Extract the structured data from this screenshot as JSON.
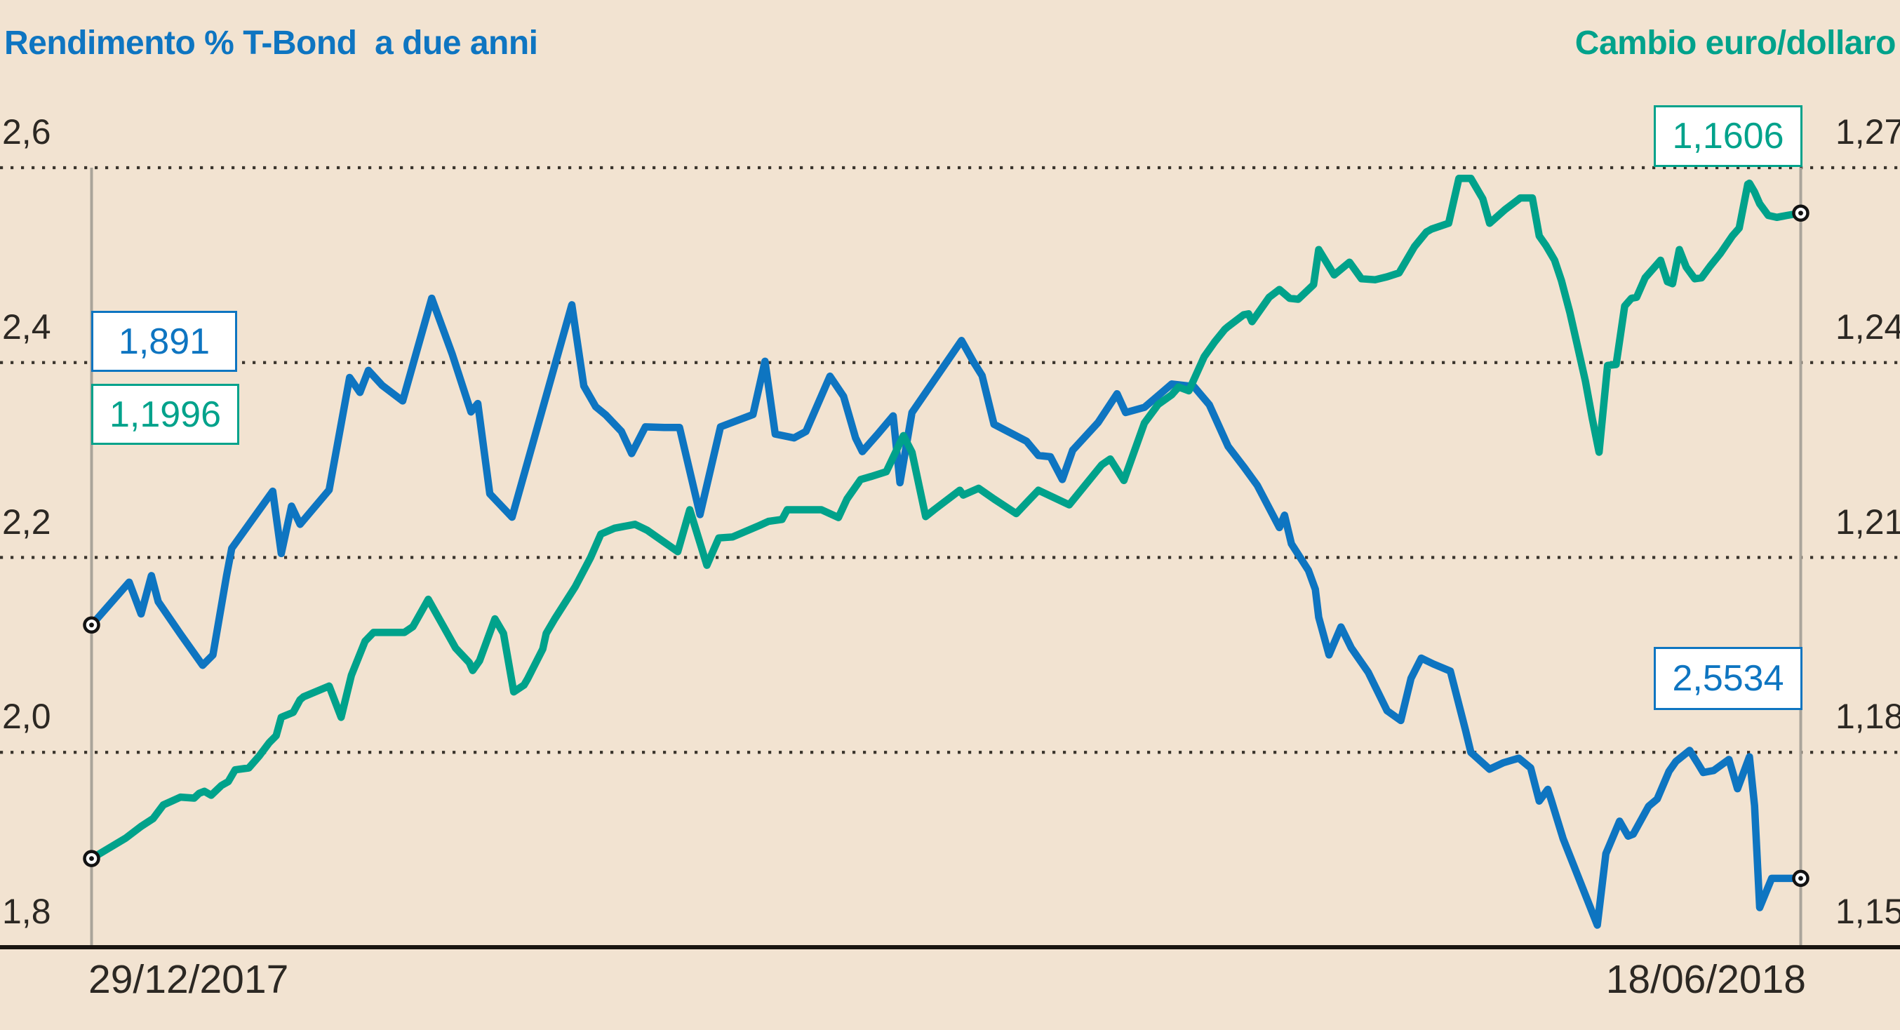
{
  "chart_data": {
    "type": "line",
    "background_color": "#f2e3d1",
    "title_left": {
      "text": "Rendimento % T-Bond  a due anni",
      "color": "#0e75c1"
    },
    "title_right": {
      "text": "Cambio euro/dollaro",
      "color": "#00a28b"
    },
    "x_axis": {
      "start_label": "29/12/2017",
      "end_label": "18/06/2018"
    },
    "y_axis_left": {
      "labels": [
        "2,6",
        "2,4",
        "2,2",
        "2,0",
        "1,8"
      ],
      "values": [
        2.6,
        2.4,
        2.2,
        2.0,
        1.8
      ],
      "min": 1.8,
      "max": 2.6
    },
    "y_axis_right": {
      "labels": [
        "1,27",
        "1,24",
        "1,21",
        "1,18",
        "1,15"
      ],
      "values": [
        1.27,
        1.24,
        1.21,
        1.18,
        1.15
      ],
      "min": 1.15,
      "max": 1.27
    },
    "grid": {
      "style": "dotted",
      "color": "#3a342c",
      "legend_position": "none"
    },
    "annotations": [
      {
        "text": "1,891",
        "color": "blue",
        "position": "start-left"
      },
      {
        "text": "1,1996",
        "color": "green",
        "position": "start-left-below"
      },
      {
        "text": "1,1606",
        "color": "green",
        "position": "end-top-right"
      },
      {
        "text": "2,5534",
        "color": "blue",
        "position": "end-mid-right"
      }
    ],
    "series": [
      {
        "id": "blue-line",
        "color": "#0e75c1",
        "axis": "right",
        "start_value": 1.1996,
        "end_value": 1.1606,
        "points": [
          [
            0.0,
            1.1996
          ],
          [
            0.022,
            1.2062
          ],
          [
            0.029,
            1.2013
          ],
          [
            0.035,
            1.2072
          ],
          [
            0.039,
            1.2032
          ],
          [
            0.052,
            1.1982
          ],
          [
            0.065,
            1.1934
          ],
          [
            0.071,
            1.195
          ],
          [
            0.079,
            1.2072
          ],
          [
            0.082,
            1.2114
          ],
          [
            0.106,
            1.2202
          ],
          [
            0.111,
            1.2106
          ],
          [
            0.117,
            1.2179
          ],
          [
            0.122,
            1.2151
          ],
          [
            0.139,
            1.2204
          ],
          [
            0.151,
            1.2377
          ],
          [
            0.157,
            1.2354
          ],
          [
            0.162,
            1.2388
          ],
          [
            0.17,
            1.2365
          ],
          [
            0.182,
            1.2341
          ],
          [
            0.199,
            1.2499
          ],
          [
            0.211,
            1.2413
          ],
          [
            0.222,
            1.2324
          ],
          [
            0.226,
            1.2337
          ],
          [
            0.233,
            1.2198
          ],
          [
            0.246,
            1.2162
          ],
          [
            0.281,
            1.2489
          ],
          [
            0.288,
            1.2364
          ],
          [
            0.295,
            1.2332
          ],
          [
            0.301,
            1.2319
          ],
          [
            0.31,
            1.2294
          ],
          [
            0.316,
            1.226
          ],
          [
            0.324,
            1.2301
          ],
          [
            0.335,
            1.23
          ],
          [
            0.344,
            1.23
          ],
          [
            0.356,
            1.2166
          ],
          [
            0.368,
            1.2301
          ],
          [
            0.387,
            1.232
          ],
          [
            0.394,
            1.2402
          ],
          [
            0.4,
            1.229
          ],
          [
            0.411,
            1.2284
          ],
          [
            0.418,
            1.2294
          ],
          [
            0.432,
            1.2379
          ],
          [
            0.44,
            1.2348
          ],
          [
            0.447,
            1.2284
          ],
          [
            0.451,
            1.2263
          ],
          [
            0.46,
            1.229
          ],
          [
            0.469,
            1.2318
          ],
          [
            0.473,
            1.2215
          ],
          [
            0.48,
            1.2323
          ],
          [
            0.509,
            1.2434
          ],
          [
            0.516,
            1.2401
          ],
          [
            0.521,
            1.238
          ],
          [
            0.528,
            1.2305
          ],
          [
            0.547,
            1.2279
          ],
          [
            0.554,
            1.2257
          ],
          [
            0.561,
            1.2255
          ],
          [
            0.568,
            1.222
          ],
          [
            0.574,
            1.2265
          ],
          [
            0.589,
            1.2308
          ],
          [
            0.6,
            1.2352
          ],
          [
            0.605,
            1.2323
          ],
          [
            0.616,
            1.2331
          ],
          [
            0.632,
            1.2367
          ],
          [
            0.645,
            1.2363
          ],
          [
            0.654,
            1.2335
          ],
          [
            0.665,
            1.2271
          ],
          [
            0.674,
            1.224
          ],
          [
            0.682,
            1.2211
          ],
          [
            0.689,
            1.2176
          ],
          [
            0.695,
            1.2146
          ],
          [
            0.698,
            1.2165
          ],
          [
            0.702,
            1.2121
          ],
          [
            0.712,
            1.208
          ],
          [
            0.716,
            1.2051
          ],
          [
            0.718,
            1.2008
          ],
          [
            0.724,
            1.195
          ],
          [
            0.731,
            1.1993
          ],
          [
            0.737,
            1.1961
          ],
          [
            0.747,
            1.1923
          ],
          [
            0.758,
            1.1864
          ],
          [
            0.766,
            1.1849
          ],
          [
            0.772,
            1.1914
          ],
          [
            0.778,
            1.1945
          ],
          [
            0.785,
            1.1936
          ],
          [
            0.795,
            1.1925
          ],
          [
            0.804,
            1.1833
          ],
          [
            0.807,
            1.18
          ],
          [
            0.818,
            1.1774
          ],
          [
            0.826,
            1.1784
          ],
          [
            0.835,
            1.1791
          ],
          [
            0.842,
            1.1776
          ],
          [
            0.847,
            1.1725
          ],
          [
            0.852,
            1.1743
          ],
          [
            0.854,
            1.1727
          ],
          [
            0.861,
            1.1667
          ],
          [
            0.881,
            1.1534
          ],
          [
            0.886,
            1.1644
          ],
          [
            0.894,
            1.1694
          ],
          [
            0.899,
            1.1671
          ],
          [
            0.902,
            1.1674
          ],
          [
            0.911,
            1.1717
          ],
          [
            0.916,
            1.1728
          ],
          [
            0.923,
            1.1771
          ],
          [
            0.927,
            1.1786
          ],
          [
            0.935,
            1.1803
          ],
          [
            0.94,
            1.1782
          ],
          [
            0.943,
            1.1769
          ],
          [
            0.949,
            1.1772
          ],
          [
            0.958,
            1.1789
          ],
          [
            0.963,
            1.1744
          ],
          [
            0.97,
            1.1793
          ],
          [
            0.973,
            1.1718
          ],
          [
            0.976,
            1.1561
          ],
          [
            0.983,
            1.1606
          ],
          [
            1.0,
            1.1606
          ]
        ]
      },
      {
        "id": "green-line",
        "color": "#00a28b",
        "axis": "left",
        "start_value": 1.891,
        "end_value": 2.5534,
        "points": [
          [
            0.0,
            1.891
          ],
          [
            0.02,
            1.912
          ],
          [
            0.029,
            1.924
          ],
          [
            0.036,
            1.932
          ],
          [
            0.042,
            1.946
          ],
          [
            0.047,
            1.95
          ],
          [
            0.052,
            1.954
          ],
          [
            0.06,
            1.953
          ],
          [
            0.063,
            1.958
          ],
          [
            0.066,
            1.96
          ],
          [
            0.07,
            1.956
          ],
          [
            0.076,
            1.966
          ],
          [
            0.08,
            1.97
          ],
          [
            0.084,
            1.982
          ],
          [
            0.092,
            1.984
          ],
          [
            0.098,
            1.996
          ],
          [
            0.104,
            2.01
          ],
          [
            0.108,
            2.017
          ],
          [
            0.111,
            2.036
          ],
          [
            0.118,
            2.041
          ],
          [
            0.122,
            2.054
          ],
          [
            0.124,
            2.057
          ],
          [
            0.139,
            2.068
          ],
          [
            0.146,
            2.036
          ],
          [
            0.152,
            2.079
          ],
          [
            0.16,
            2.114
          ],
          [
            0.165,
            2.123
          ],
          [
            0.183,
            2.123
          ],
          [
            0.188,
            2.129
          ],
          [
            0.197,
            2.157
          ],
          [
            0.213,
            2.107
          ],
          [
            0.221,
            2.092
          ],
          [
            0.223,
            2.084
          ],
          [
            0.227,
            2.094
          ],
          [
            0.236,
            2.137
          ],
          [
            0.241,
            2.122
          ],
          [
            0.247,
            2.062
          ],
          [
            0.253,
            2.069
          ],
          [
            0.255,
            2.075
          ],
          [
            0.264,
            2.106
          ],
          [
            0.266,
            2.122
          ],
          [
            0.271,
            2.137
          ],
          [
            0.283,
            2.17
          ],
          [
            0.292,
            2.2
          ],
          [
            0.298,
            2.224
          ],
          [
            0.306,
            2.23
          ],
          [
            0.318,
            2.234
          ],
          [
            0.325,
            2.228
          ],
          [
            0.343,
            2.206
          ],
          [
            0.35,
            2.249
          ],
          [
            0.36,
            2.192
          ],
          [
            0.367,
            2.22
          ],
          [
            0.375,
            2.221
          ],
          [
            0.391,
            2.233
          ],
          [
            0.396,
            2.237
          ],
          [
            0.404,
            2.239
          ],
          [
            0.407,
            2.249
          ],
          [
            0.427,
            2.249
          ],
          [
            0.437,
            2.241
          ],
          [
            0.442,
            2.26
          ],
          [
            0.45,
            2.28
          ],
          [
            0.456,
            2.283
          ],
          [
            0.465,
            2.288
          ],
          [
            0.475,
            2.325
          ],
          [
            0.48,
            2.308
          ],
          [
            0.488,
            2.242
          ],
          [
            0.493,
            2.249
          ],
          [
            0.508,
            2.269
          ],
          [
            0.51,
            2.264
          ],
          [
            0.519,
            2.271
          ],
          [
            0.528,
            2.26
          ],
          [
            0.541,
            2.245
          ],
          [
            0.548,
            2.258
          ],
          [
            0.554,
            2.269
          ],
          [
            0.572,
            2.254
          ],
          [
            0.591,
            2.295
          ],
          [
            0.596,
            2.301
          ],
          [
            0.604,
            2.279
          ],
          [
            0.616,
            2.338
          ],
          [
            0.624,
            2.357
          ],
          [
            0.632,
            2.367
          ],
          [
            0.636,
            2.375
          ],
          [
            0.642,
            2.371
          ],
          [
            0.651,
            2.406
          ],
          [
            0.657,
            2.421
          ],
          [
            0.663,
            2.434
          ],
          [
            0.665,
            2.437
          ],
          [
            0.674,
            2.449
          ],
          [
            0.677,
            2.45
          ],
          [
            0.679,
            2.442
          ],
          [
            0.689,
            2.467
          ],
          [
            0.695,
            2.475
          ],
          [
            0.701,
            2.466
          ],
          [
            0.706,
            2.465
          ],
          [
            0.715,
            2.48
          ],
          [
            0.718,
            2.516
          ],
          [
            0.727,
            2.49
          ],
          [
            0.736,
            2.503
          ],
          [
            0.743,
            2.486
          ],
          [
            0.751,
            2.485
          ],
          [
            0.758,
            2.488
          ],
          [
            0.765,
            2.492
          ],
          [
            0.774,
            2.519
          ],
          [
            0.781,
            2.534
          ],
          [
            0.784,
            2.537
          ],
          [
            0.794,
            2.543
          ],
          [
            0.8,
            2.589
          ],
          [
            0.807,
            2.589
          ],
          [
            0.814,
            2.568
          ],
          [
            0.818,
            2.543
          ],
          [
            0.827,
            2.557
          ],
          [
            0.836,
            2.569
          ],
          [
            0.843,
            2.569
          ],
          [
            0.847,
            2.53
          ],
          [
            0.851,
            2.52
          ],
          [
            0.856,
            2.505
          ],
          [
            0.86,
            2.484
          ],
          [
            0.865,
            2.451
          ],
          [
            0.869,
            2.42
          ],
          [
            0.874,
            2.381
          ],
          [
            0.878,
            2.343
          ],
          [
            0.882,
            2.308
          ],
          [
            0.887,
            2.397
          ],
          [
            0.892,
            2.398
          ],
          [
            0.897,
            2.458
          ],
          [
            0.901,
            2.466
          ],
          [
            0.904,
            2.467
          ],
          [
            0.909,
            2.487
          ],
          [
            0.917,
            2.503
          ],
          [
            0.918,
            2.505
          ],
          [
            0.922,
            2.483
          ],
          [
            0.925,
            2.481
          ],
          [
            0.929,
            2.516
          ],
          [
            0.933,
            2.498
          ],
          [
            0.938,
            2.486
          ],
          [
            0.942,
            2.487
          ],
          [
            0.947,
            2.499
          ],
          [
            0.953,
            2.512
          ],
          [
            0.96,
            2.53
          ],
          [
            0.964,
            2.538
          ],
          [
            0.969,
            2.583
          ],
          [
            0.97,
            2.584
          ],
          [
            0.973,
            2.575
          ],
          [
            0.976,
            2.563
          ],
          [
            0.981,
            2.551
          ],
          [
            0.986,
            2.549
          ],
          [
            0.992,
            2.551
          ],
          [
            1.0,
            2.5534
          ]
        ]
      }
    ]
  }
}
